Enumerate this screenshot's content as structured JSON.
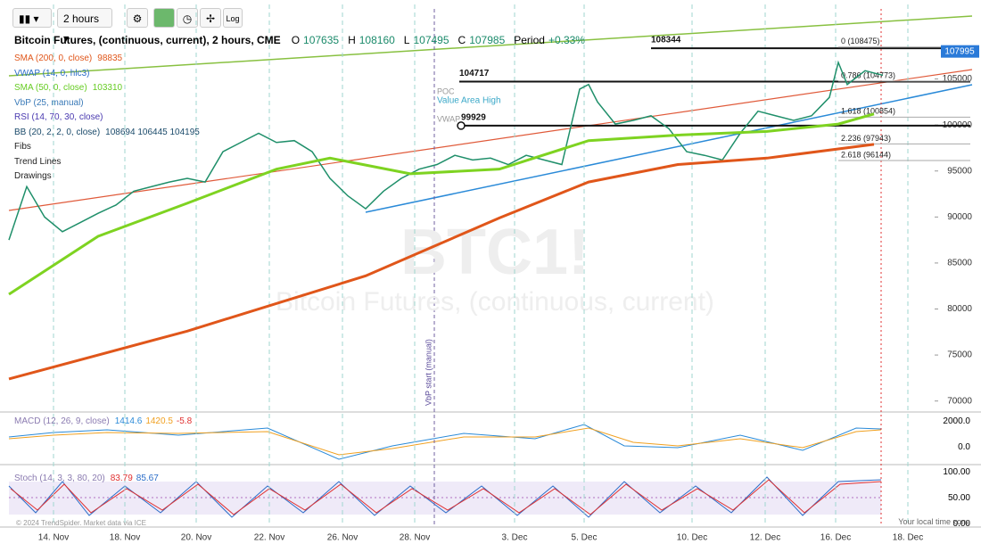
{
  "toolbar": {
    "interval": "2 hours"
  },
  "header": {
    "title": "Bitcoin Futures, (continuous, current), 2 hours, CME",
    "ohlc": [
      {
        "key": "O",
        "value": "107635"
      },
      {
        "key": "H",
        "value": "108160"
      },
      {
        "key": "L",
        "value": "107495"
      },
      {
        "key": "C",
        "value": "107985"
      }
    ],
    "period_label": "Period",
    "period_change": "+0.33%"
  },
  "indicators": [
    {
      "name": "SMA (200, 0, close)",
      "value": "98835",
      "color": "#e0561a"
    },
    {
      "name": "VWAP (14, 0, hlc3)",
      "value": "",
      "color": "#2a6cc8"
    },
    {
      "name": "SMA (50, 0, close)",
      "value": "103310",
      "color": "#66cc22"
    },
    {
      "name": "VbP (25, manual)",
      "value": "",
      "color": "#3a7ab8"
    },
    {
      "name": "RSI (14, 70, 30, close)",
      "value": "",
      "color": "#4a3ab0"
    },
    {
      "name": "BB (20, 2, 2, 0, close)",
      "value": "108694 106445 104195",
      "color": "#1a4a6a"
    },
    {
      "name": "Fibs",
      "value": "",
      "color": "#222"
    },
    {
      "name": "Trend Lines",
      "value": "",
      "color": "#222"
    },
    {
      "name": "Drawings",
      "value": "",
      "color": "#222"
    }
  ],
  "chart_data": {
    "type": "line",
    "x": [
      0,
      2,
      4,
      6,
      8,
      10,
      12,
      14,
      16,
      18,
      20,
      22,
      24,
      26,
      28,
      30,
      32,
      34,
      36,
      38,
      40,
      42,
      44,
      46,
      48,
      50,
      52,
      54,
      56,
      58,
      62,
      64,
      65,
      66,
      68,
      70,
      72,
      74,
      76,
      78,
      80,
      82,
      84,
      86,
      88,
      90,
      92,
      93,
      94,
      96,
      98
    ],
    "series": [
      {
        "name": "Close",
        "color": "#1f8f6a",
        "values": [
          87500,
          93300,
          90000,
          88400,
          89400,
          90400,
          91300,
          92800,
          93300,
          93800,
          94200,
          93800,
          97100,
          98100,
          99100,
          98100,
          98300,
          97100,
          94200,
          92300,
          90900,
          92800,
          94200,
          95200,
          95700,
          96700,
          96200,
          96400,
          95700,
          96700,
          95700,
          103900,
          104400,
          102500,
          100100,
          100500,
          101000,
          99600,
          97100,
          96700,
          96200,
          99100,
          101500,
          101000,
          100500,
          101000,
          103000,
          106800,
          104400,
          105900,
          105400
        ]
      },
      {
        "name": "SMA 200",
        "color": "#e0561a",
        "x": [
          0,
          20,
          40,
          55,
          65,
          75,
          85,
          97
        ],
        "values": [
          72400,
          77600,
          83600,
          89900,
          93800,
          95700,
          96400,
          97900
        ]
      },
      {
        "name": "SMA 50",
        "color": "#7ed321",
        "x": [
          0,
          10,
          20,
          30,
          36,
          45,
          55,
          65,
          75,
          85,
          93,
          97
        ],
        "values": [
          81600,
          87900,
          91500,
          95200,
          96400,
          94700,
          95200,
          98300,
          98900,
          99300,
          100100,
          101200
        ]
      }
    ],
    "xlim": [
      0,
      108
    ],
    "xticks": [
      {
        "value": 5,
        "label": "14. Nov"
      },
      {
        "value": 13,
        "label": "18. Nov"
      },
      {
        "value": 21,
        "label": "20. Nov"
      },
      {
        "value": 29.2,
        "label": "22. Nov"
      },
      {
        "value": 37.4,
        "label": "26. Nov"
      },
      {
        "value": 45.5,
        "label": "28. Nov"
      },
      {
        "value": 56.7,
        "label": "3. Dec"
      },
      {
        "value": 64.5,
        "label": "5. Dec"
      },
      {
        "value": 76.6,
        "label": "10. Dec"
      },
      {
        "value": 84.8,
        "label": "12. Dec"
      },
      {
        "value": 92.7,
        "label": "16. Dec"
      },
      {
        "value": 100.8,
        "label": "18. Dec"
      }
    ],
    "ylim": [
      69000,
      113100
    ],
    "yticks": [
      70000,
      75000,
      80000,
      85000,
      90000,
      95000,
      100000,
      105000
    ],
    "hlines": [
      108344,
      104717,
      99929
    ],
    "fib_levels": [
      {
        "value": 108475,
        "label": "0 (108475)"
      },
      {
        "value": 104773,
        "label": "0.786 (104773)"
      },
      {
        "value": 100854,
        "label": "1.618 (100854)"
      },
      {
        "value": 97943,
        "label": "2.236 (97943)"
      },
      {
        "value": 96144,
        "label": "2.618 (96144)"
      }
    ],
    "last_price": 107995,
    "annotations": {
      "vah": "Value Area High",
      "vwap": "VWAP",
      "poc": "POC",
      "vbp": "VbP start (manual)",
      "watermark": "BTC1!",
      "watermark_sub": "Bitcoin Futures, (continuous, current)"
    }
  },
  "macd": {
    "label": "MACD (12, 26, 9, close)",
    "values": [
      {
        "text": "1414.6",
        "color": "#2a8ad8"
      },
      {
        "text": "1420.5",
        "color": "#f0a020"
      },
      {
        "text": "-5.8",
        "color": "#e03030"
      }
    ],
    "ticks": [
      "2000.0",
      "0.0"
    ]
  },
  "stoch": {
    "label": "Stoch (14, 3, 3, 80, 20)",
    "values": [
      {
        "text": "83.79",
        "color": "#e03030"
      },
      {
        "text": "85.67",
        "color": "#2a6cc8"
      }
    ],
    "ticks": [
      "100.00",
      "50.00",
      "0.00"
    ]
  },
  "footer": {
    "copyright": "© 2024 TrendSpider. Market data via ICE",
    "timezone": "Your local time zone"
  }
}
